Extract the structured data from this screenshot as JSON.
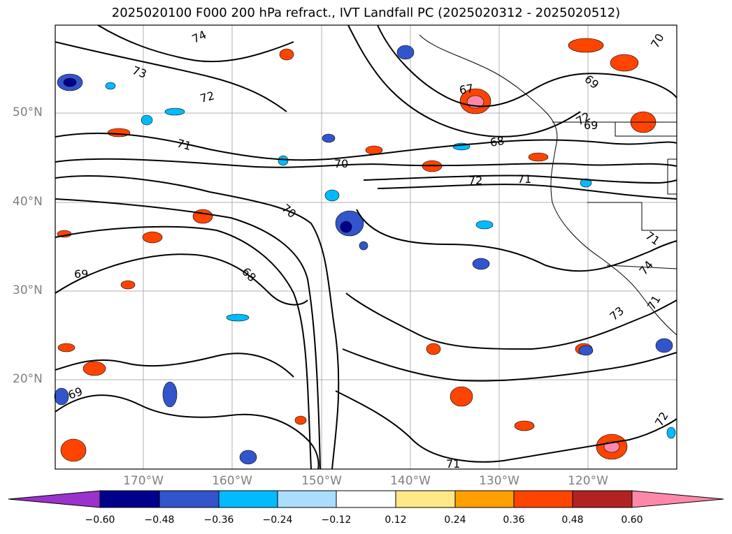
{
  "title": "2025020100 F000 200 hPa refract., IVT Landfall PC (2025020312 - 2025020512)",
  "axes": {
    "lat_labels": [
      "50°N",
      "40°N",
      "30°N",
      "20°N"
    ],
    "lon_labels": [
      "170°W",
      "160°W",
      "150°W",
      "140°W",
      "130°W",
      "120°W"
    ]
  },
  "contour_labels": [
    "74",
    "73",
    "72",
    "71",
    "70",
    "70",
    "69",
    "68",
    "67",
    "69",
    "68",
    "71",
    "72",
    "71",
    "74",
    "73",
    "72",
    "69",
    "70",
    "71",
    "72",
    "71",
    "69"
  ],
  "colorbar": {
    "ticks": [
      "−0.60",
      "−0.48",
      "−0.36",
      "−0.24",
      "−0.12",
      "0.12",
      "0.24",
      "0.36",
      "0.48",
      "0.60"
    ],
    "colors": [
      "#9933cc",
      "#00008b",
      "#3355cc",
      "#00bbff",
      "#aaddff",
      "#ffffff",
      "#ffe88a",
      "#ffa000",
      "#ff4400",
      "#b22222",
      "#ff88aa"
    ]
  }
}
